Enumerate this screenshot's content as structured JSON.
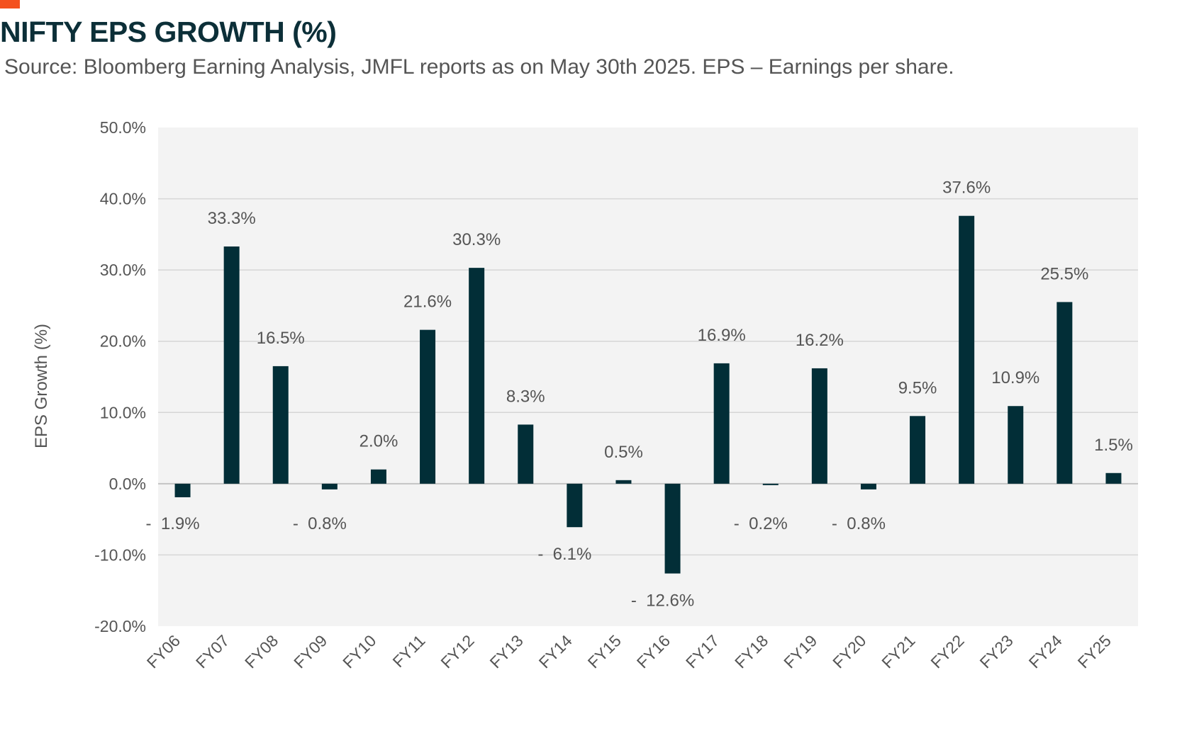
{
  "header": {
    "title": "NIFTY EPS GROWTH (%)",
    "subtitle": "Source: Bloomberg Earning Analysis, JMFL reports as on May 30th 2025. EPS – Earnings per share."
  },
  "colors": {
    "accent": "#f4511e",
    "bar": "#022e37",
    "plot_bg": "#f3f3f3",
    "grid": "#d6d6d6",
    "title": "#0c2f38"
  },
  "chart_data": {
    "type": "bar",
    "ylabel": "EPS Growth (%)",
    "ylim": [
      -20,
      50
    ],
    "ytick_step": 10,
    "ytick_labels": [
      "50.0%",
      "40.0%",
      "30.0%",
      "20.0%",
      "10.0%",
      "0.0%",
      "-10.0%",
      "-20.0%"
    ],
    "categories": [
      "FY06",
      "FY07",
      "FY08",
      "FY09",
      "FY10",
      "FY11",
      "FY12",
      "FY13",
      "FY14",
      "FY15",
      "FY16",
      "FY17",
      "FY18",
      "FY19",
      "FY20",
      "FY21",
      "FY22",
      "FY23",
      "FY24",
      "FY25"
    ],
    "values": [
      -1.9,
      33.3,
      16.5,
      -0.8,
      2.0,
      21.6,
      30.3,
      8.3,
      -6.1,
      0.5,
      -12.6,
      16.9,
      -0.2,
      16.2,
      -0.8,
      9.5,
      37.6,
      10.9,
      25.5,
      1.5
    ],
    "data_labels": [
      "-  1.9%",
      "33.3%",
      "16.5%",
      "-  0.8%",
      "2.0%",
      "21.6%",
      "30.3%",
      "8.3%",
      "-  6.1%",
      "0.5%",
      "-  12.6%",
      "16.9%",
      "-  0.2%",
      "16.2%",
      "-  0.8%",
      "9.5%",
      "37.6%",
      "10.9%",
      "25.5%",
      "1.5%"
    ],
    "grid": true
  }
}
